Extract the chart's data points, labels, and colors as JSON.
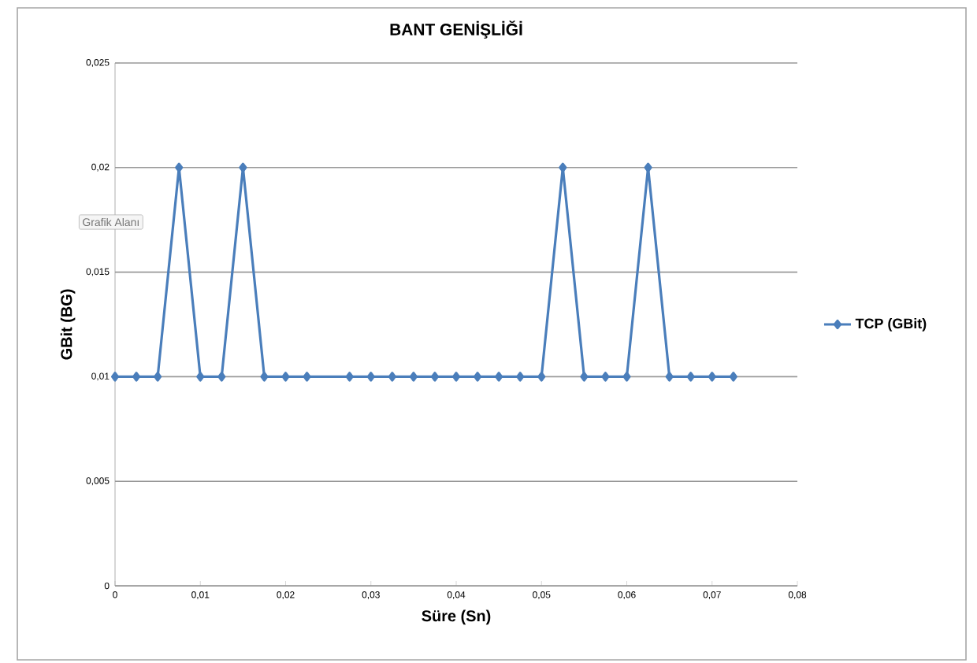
{
  "chart_data": {
    "type": "line",
    "title": "BANT GENİŞLİĞİ",
    "xlabel": "Süre (Sn)",
    "ylabel": "GBit (BG)",
    "annotations": [
      "Grafik Alanı"
    ],
    "x": [
      0,
      0.0025,
      0.005,
      0.0075,
      0.01,
      0.0125,
      0.015,
      0.0175,
      0.02,
      0.0225,
      0.0275,
      0.03,
      0.0325,
      0.035,
      0.0375,
      0.04,
      0.0425,
      0.045,
      0.0475,
      0.05,
      0.0525,
      0.055,
      0.0575,
      0.06,
      0.0625,
      0.065,
      0.0675,
      0.07,
      0.0725
    ],
    "series": [
      {
        "name": "TCP (GBit)",
        "color": "#4a7ebb",
        "values": [
          0.01,
          0.01,
          0.01,
          0.02,
          0.01,
          0.01,
          0.02,
          0.01,
          0.01,
          0.01,
          0.01,
          0.01,
          0.01,
          0.01,
          0.01,
          0.01,
          0.01,
          0.01,
          0.01,
          0.01,
          0.02,
          0.01,
          0.01,
          0.01,
          0.02,
          0.01,
          0.01,
          0.01,
          0.01
        ]
      }
    ],
    "xlim": [
      0,
      0.08
    ],
    "ylim": [
      0,
      0.025
    ],
    "xticks": [
      {
        "value": 0,
        "label": "0"
      },
      {
        "value": 0.01,
        "label": "0,01"
      },
      {
        "value": 0.02,
        "label": "0,02"
      },
      {
        "value": 0.03,
        "label": "0,03"
      },
      {
        "value": 0.04,
        "label": "0,04"
      },
      {
        "value": 0.05,
        "label": "0,05"
      },
      {
        "value": 0.06,
        "label": "0,06"
      },
      {
        "value": 0.07,
        "label": "0,07"
      },
      {
        "value": 0.08,
        "label": "0,08"
      }
    ],
    "yticks": [
      {
        "value": 0,
        "label": "0"
      },
      {
        "value": 0.005,
        "label": "0,005"
      },
      {
        "value": 0.01,
        "label": "0,01"
      },
      {
        "value": 0.015,
        "label": "0,015"
      },
      {
        "value": 0.02,
        "label": "0,02"
      },
      {
        "value": 0.025,
        "label": "0,025"
      }
    ],
    "grid": "y",
    "legend": "right",
    "marker": "diamond",
    "line_style": "solid"
  }
}
